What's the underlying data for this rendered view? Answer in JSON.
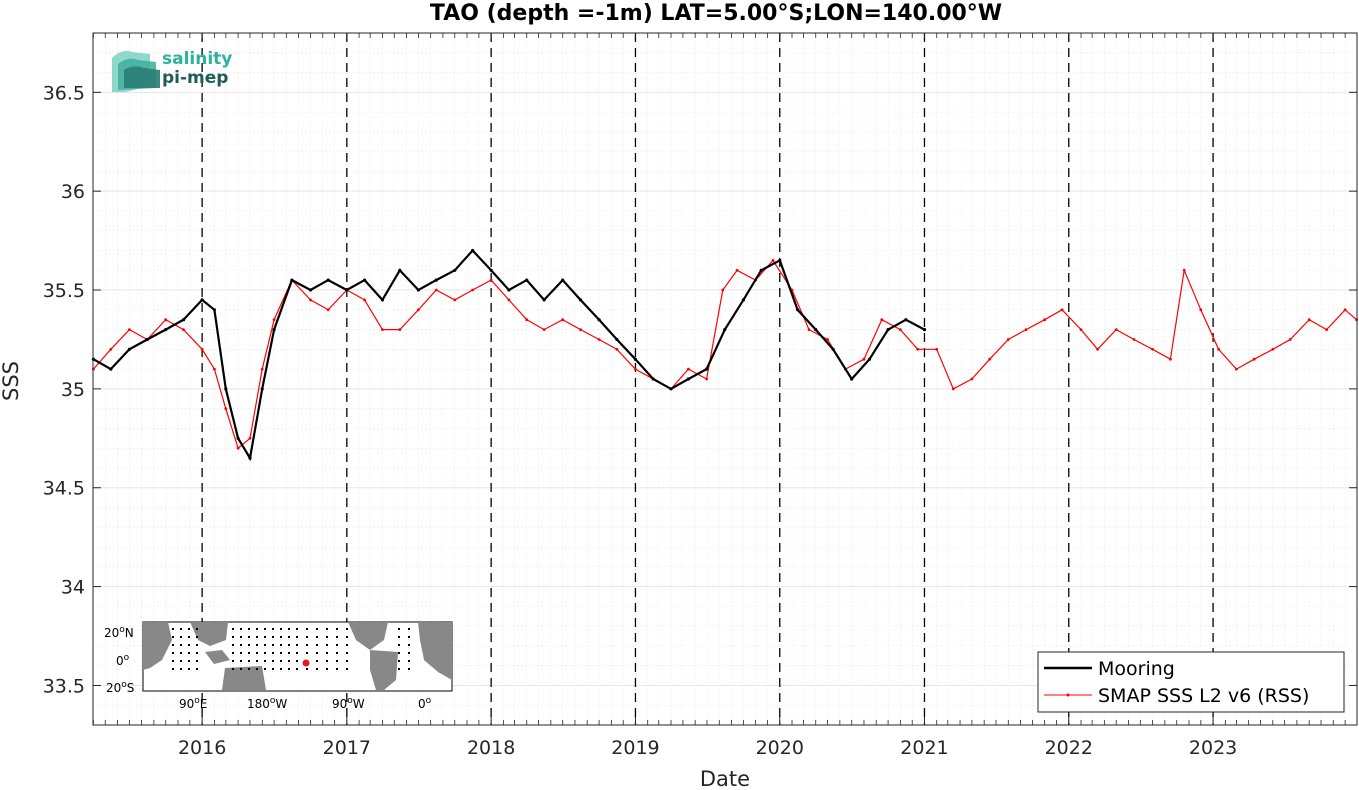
{
  "chart_data": {
    "type": "line",
    "title": "TAO (depth =-1m) LAT=5.00°S;LON=140.00°W",
    "xlabel": "Date",
    "ylabel": "SSS",
    "xlim": [
      "2015-03-31",
      "2023-12-31"
    ],
    "ylim": [
      33.3,
      36.8
    ],
    "x_ticks": [
      "2016",
      "2017",
      "2018",
      "2019",
      "2020",
      "2021",
      "2022",
      "2023"
    ],
    "y_ticks": [
      "33.5",
      "34",
      "34.5",
      "35",
      "35.5",
      "36",
      "36.5"
    ],
    "y_tick_values": [
      33.5,
      34,
      34.5,
      35,
      35.5,
      36,
      36.5
    ],
    "grid": true,
    "minor_grid": true,
    "year_lines": "dashed",
    "legend_position": "bottom-right",
    "series": [
      {
        "name": "Mooring",
        "color": "#000000",
        "x": [
          "2015-04-01",
          "2015-05-15",
          "2015-07-01",
          "2015-08-15",
          "2015-10-01",
          "2015-11-15",
          "2016-01-01",
          "2016-02-01",
          "2016-03-01",
          "2016-04-01",
          "2016-05-01",
          "2016-06-01",
          "2016-07-01",
          "2016-08-15",
          "2016-10-01",
          "2016-11-15",
          "2017-01-01",
          "2017-02-15",
          "2017-04-01",
          "2017-05-15",
          "2017-07-01",
          "2017-08-15",
          "2017-10-01",
          "2017-11-15",
          "2018-01-01",
          "2018-02-15",
          "2018-04-01",
          "2018-05-15",
          "2018-07-01",
          "2018-08-15",
          "2018-10-01",
          "2018-11-15",
          "2019-01-01",
          "2019-02-15",
          "2019-04-01",
          "2019-05-15",
          "2019-06-30",
          "2019-08-15",
          "2019-10-01",
          "2019-11-15",
          "2020-01-01",
          "2020-02-15",
          "2020-04-01",
          "2020-05-15",
          "2020-07-01",
          "2020-08-15",
          "2020-10-01",
          "2020-11-15",
          "2021-01-01"
        ],
        "y": [
          35.15,
          35.1,
          35.2,
          35.25,
          35.3,
          35.35,
          35.45,
          35.4,
          35.0,
          34.75,
          34.65,
          35.0,
          35.3,
          35.55,
          35.5,
          35.55,
          35.5,
          35.55,
          35.45,
          35.6,
          35.5,
          35.55,
          35.6,
          35.7,
          35.6,
          35.5,
          35.55,
          35.45,
          35.55,
          35.45,
          35.35,
          35.25,
          35.15,
          35.05,
          35.0,
          35.05,
          35.1,
          35.3,
          35.45,
          35.6,
          35.65,
          35.4,
          35.3,
          35.2,
          35.05,
          35.15,
          35.3,
          35.35,
          35.3
        ]
      },
      {
        "name": "SMAP SSS L2 v6 (RSS)",
        "color": "#ff0000",
        "x": [
          "2015-04-01",
          "2015-05-15",
          "2015-07-01",
          "2015-08-15",
          "2015-10-01",
          "2015-11-15",
          "2016-01-01",
          "2016-02-01",
          "2016-03-01",
          "2016-04-01",
          "2016-05-01",
          "2016-06-01",
          "2016-07-01",
          "2016-08-15",
          "2016-10-01",
          "2016-11-15",
          "2017-01-01",
          "2017-02-15",
          "2017-04-01",
          "2017-05-15",
          "2017-07-01",
          "2017-08-15",
          "2017-10-01",
          "2017-11-15",
          "2018-01-01",
          "2018-02-15",
          "2018-04-01",
          "2018-05-15",
          "2018-07-01",
          "2018-08-15",
          "2018-10-01",
          "2018-11-15",
          "2019-01-01",
          "2019-02-15",
          "2019-04-01",
          "2019-05-15",
          "2019-06-30",
          "2019-08-10",
          "2019-09-15",
          "2019-11-01",
          "2019-12-15",
          "2020-02-01",
          "2020-03-15",
          "2020-05-01",
          "2020-06-15",
          "2020-08-01",
          "2020-09-15",
          "2020-11-01",
          "2020-12-15",
          "2021-02-01",
          "2021-03-15",
          "2021-05-01",
          "2021-06-15",
          "2021-08-01",
          "2021-09-15",
          "2021-11-01",
          "2021-12-15",
          "2022-02-01",
          "2022-03-15",
          "2022-05-01",
          "2022-06-15",
          "2022-08-01",
          "2022-09-15",
          "2022-10-20",
          "2022-12-01",
          "2023-01-15",
          "2023-03-01",
          "2023-04-15",
          "2023-06-01",
          "2023-07-15",
          "2023-09-01",
          "2023-10-15",
          "2023-12-01",
          "2023-12-30"
        ],
        "y": [
          35.1,
          35.2,
          35.3,
          35.25,
          35.35,
          35.3,
          35.2,
          35.1,
          34.9,
          34.7,
          34.75,
          35.1,
          35.35,
          35.55,
          35.45,
          35.4,
          35.5,
          35.45,
          35.3,
          35.3,
          35.4,
          35.5,
          35.45,
          35.5,
          35.55,
          35.45,
          35.35,
          35.3,
          35.35,
          35.3,
          35.25,
          35.2,
          35.1,
          35.05,
          35.0,
          35.1,
          35.05,
          35.5,
          35.6,
          35.55,
          35.65,
          35.5,
          35.3,
          35.25,
          35.1,
          35.15,
          35.35,
          35.3,
          35.2,
          35.2,
          35.0,
          35.05,
          35.15,
          35.25,
          35.3,
          35.35,
          35.4,
          35.3,
          35.2,
          35.3,
          35.25,
          35.2,
          35.15,
          35.6,
          35.4,
          35.2,
          35.1,
          35.15,
          35.2,
          35.25,
          35.35,
          35.3,
          35.4,
          35.35
        ]
      }
    ]
  },
  "logo": {
    "line1": "salinity",
    "line2": "pi-mep"
  },
  "inset_map": {
    "y_labels": [
      "20",
      "N",
      "0",
      "20",
      "S"
    ],
    "x_labels": [
      "90",
      "E",
      "180",
      "W",
      "90",
      "W",
      "0"
    ],
    "degree_mark": "o",
    "land_color": "#888888",
    "marker_color": "#e21b1b"
  }
}
